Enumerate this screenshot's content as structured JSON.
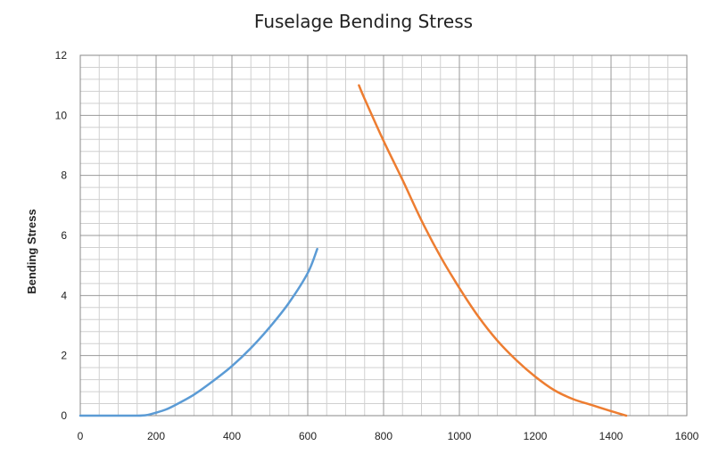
{
  "chart_data": {
    "type": "line",
    "title": "Fuselage Bending Stress",
    "xlabel": "",
    "ylabel": "Bending Stress",
    "xlim": [
      0,
      1600
    ],
    "ylim": [
      0,
      12
    ],
    "x_ticks": [
      0,
      200,
      400,
      600,
      800,
      1000,
      1200,
      1400,
      1600
    ],
    "y_ticks": [
      0,
      2,
      4,
      6,
      8,
      10,
      12
    ],
    "grid": true,
    "minor_grid": true,
    "legend": "none",
    "series": [
      {
        "color": "#5B9BD5",
        "x": [
          0,
          50,
          100,
          150,
          175,
          200,
          225,
          250,
          300,
          350,
          400,
          450,
          500,
          550,
          600,
          625
        ],
        "y": [
          0,
          0,
          0,
          0,
          0.02,
          0.1,
          0.2,
          0.35,
          0.7,
          1.15,
          1.65,
          2.25,
          2.95,
          3.75,
          4.75,
          5.55
        ]
      },
      {
        "color": "#ED7D31",
        "x": [
          735,
          750,
          800,
          850,
          900,
          950,
          1000,
          1050,
          1100,
          1150,
          1200,
          1250,
          1300,
          1350,
          1400,
          1440
        ],
        "y": [
          11.0,
          10.55,
          9.15,
          7.85,
          6.5,
          5.3,
          4.25,
          3.3,
          2.5,
          1.85,
          1.3,
          0.85,
          0.55,
          0.35,
          0.15,
          0.0
        ]
      }
    ]
  }
}
